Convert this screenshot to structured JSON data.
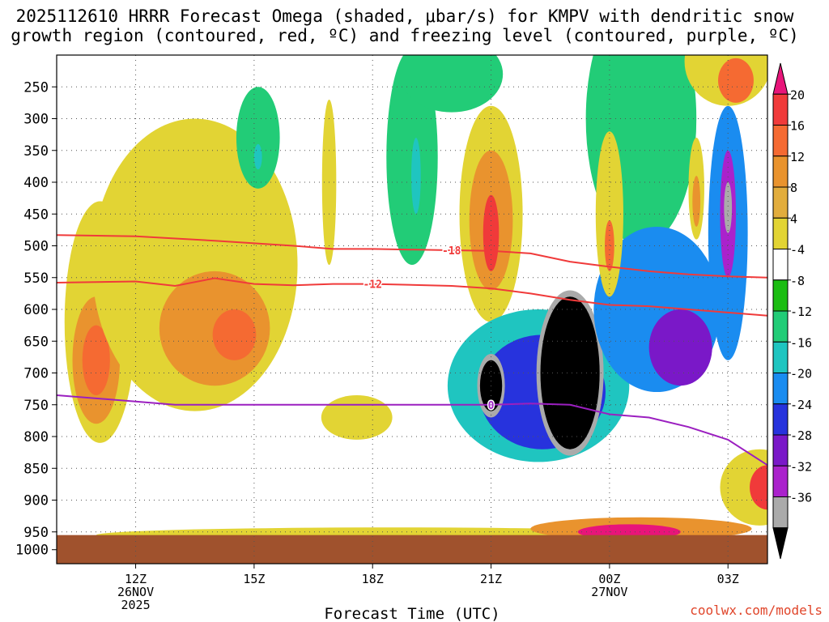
{
  "title": {
    "line1": "2025112610 HRRR Forecast Omega (shaded, μbar/s) for KMPV with dendritic snow",
    "line2": "growth region (contoured, red, ºC) and freezing level (contoured, purple, ºC)"
  },
  "credit": "coolwx.com/models",
  "chart_data": {
    "type": "heatmap",
    "title": "2025112610 HRRR Forecast Omega (shaded, μbar/s) for KMPV with dendritic snow growth region (contoured, red, ºC) and freezing level (contoured, purple, ºC)",
    "xlabel": "Forecast Time (UTC)",
    "ylabel": "",
    "x_range_hours_utc": [
      10,
      28
    ],
    "y_range_hpa": [
      200,
      1000
    ],
    "x_ticks": [
      {
        "hour": 12,
        "label": "12Z",
        "sub1": "26NOV",
        "sub2": "2025"
      },
      {
        "hour": 15,
        "label": "15Z",
        "sub1": "",
        "sub2": ""
      },
      {
        "hour": 18,
        "label": "18Z",
        "sub1": "",
        "sub2": ""
      },
      {
        "hour": 21,
        "label": "21Z",
        "sub1": "",
        "sub2": ""
      },
      {
        "hour": 24,
        "label": "00Z",
        "sub1": "27NOV",
        "sub2": ""
      },
      {
        "hour": 27,
        "label": "03Z",
        "sub1": "",
        "sub2": ""
      }
    ],
    "y_ticks": [
      250,
      300,
      350,
      400,
      450,
      500,
      550,
      600,
      650,
      700,
      750,
      800,
      850,
      900,
      950,
      1000
    ],
    "colorbar": {
      "labels": [
        "20",
        "16",
        "12",
        "8",
        "4",
        "-4",
        "-8",
        "-12",
        "-16",
        "-20",
        "-24",
        "-28",
        "-32",
        "-36"
      ],
      "colors": [
        "#e8157a",
        "#f03a3a",
        "#f56a32",
        "#e9932e",
        "#e2ad3d",
        "#e2d434",
        "#ffffff",
        "#1bbd12",
        "#22cc77",
        "#1fc5c0",
        "#1a8cf0",
        "#2733dd",
        "#7a18c8",
        "#aa22cc",
        "#aaaaaa",
        "#000000"
      ]
    },
    "ground": {
      "pressure_hpa_top": 955,
      "color": "#a0522d"
    },
    "omega_regions": [
      {
        "value": 4,
        "center": [
          11.1,
          620
        ],
        "spread": [
          0.9,
          190
        ]
      },
      {
        "value": 8,
        "center": [
          11.0,
          680
        ],
        "spread": [
          0.6,
          100
        ]
      },
      {
        "value": 12,
        "center": [
          11.0,
          680
        ],
        "spread": [
          0.35,
          55
        ]
      },
      {
        "value": 4,
        "center": [
          13.5,
          530
        ],
        "spread": [
          2.6,
          230
        ]
      },
      {
        "value": 8,
        "center": [
          14.0,
          630
        ],
        "spread": [
          1.4,
          90
        ]
      },
      {
        "value": 12,
        "center": [
          14.5,
          640
        ],
        "spread": [
          0.55,
          40
        ]
      },
      {
        "value": -8,
        "center": [
          15.1,
          330
        ],
        "spread": [
          0.55,
          80
        ]
      },
      {
        "value": -12,
        "center": [
          15.1,
          360
        ],
        "spread": [
          0.1,
          20
        ]
      },
      {
        "value": 4,
        "center": [
          16.9,
          400
        ],
        "spread": [
          0.18,
          130
        ]
      },
      {
        "value": -8,
        "center": [
          19.0,
          360
        ],
        "spread": [
          0.65,
          170
        ]
      },
      {
        "value": -12,
        "center": [
          19.1,
          390
        ],
        "spread": [
          0.12,
          60
        ]
      },
      {
        "value": 4,
        "center": [
          17.6,
          770
        ],
        "spread": [
          0.9,
          35
        ]
      },
      {
        "value": -8,
        "center": [
          20.0,
          230
        ],
        "spread": [
          1.3,
          60
        ]
      },
      {
        "value": 4,
        "center": [
          21.0,
          450
        ],
        "spread": [
          0.8,
          170
        ]
      },
      {
        "value": 8,
        "center": [
          21.0,
          460
        ],
        "spread": [
          0.55,
          110
        ]
      },
      {
        "value": 16,
        "center": [
          21.0,
          480
        ],
        "spread": [
          0.2,
          60
        ]
      },
      {
        "value": -12,
        "center": [
          22.2,
          720
        ],
        "spread": [
          2.3,
          120
        ]
      },
      {
        "value": -20,
        "center": [
          22.3,
          730
        ],
        "spread": [
          1.6,
          90
        ]
      },
      {
        "value": -32,
        "center": [
          21.0,
          720
        ],
        "spread": [
          0.35,
          50
        ]
      },
      {
        "value": -36,
        "center": [
          21.0,
          720
        ],
        "spread": [
          0.28,
          40
        ]
      },
      {
        "value": -32,
        "center": [
          23.0,
          700
        ],
        "spread": [
          0.85,
          130
        ]
      },
      {
        "value": -36,
        "center": [
          23.0,
          700
        ],
        "spread": [
          0.75,
          120
        ]
      },
      {
        "value": -8,
        "center": [
          24.8,
          300
        ],
        "spread": [
          1.4,
          200
        ]
      },
      {
        "value": -16,
        "center": [
          25.2,
          600
        ],
        "spread": [
          1.6,
          130
        ]
      },
      {
        "value": -24,
        "center": [
          25.8,
          660
        ],
        "spread": [
          0.8,
          60
        ]
      },
      {
        "value": 4,
        "center": [
          24.0,
          450
        ],
        "spread": [
          0.35,
          130
        ]
      },
      {
        "value": 12,
        "center": [
          24.0,
          500
        ],
        "spread": [
          0.12,
          40
        ]
      },
      {
        "value": 4,
        "center": [
          27.0,
          210
        ],
        "spread": [
          1.1,
          70
        ]
      },
      {
        "value": 12,
        "center": [
          27.2,
          240
        ],
        "spread": [
          0.45,
          35
        ]
      },
      {
        "value": -16,
        "center": [
          27.0,
          480
        ],
        "spread": [
          0.5,
          200
        ]
      },
      {
        "value": -28,
        "center": [
          27.0,
          450
        ],
        "spread": [
          0.2,
          100
        ]
      },
      {
        "value": -32,
        "center": [
          27.0,
          440
        ],
        "spread": [
          0.1,
          40
        ]
      },
      {
        "value": 4,
        "center": [
          26.2,
          410
        ],
        "spread": [
          0.2,
          80
        ]
      },
      {
        "value": 8,
        "center": [
          26.2,
          430
        ],
        "spread": [
          0.1,
          40
        ]
      },
      {
        "value": 4,
        "center": [
          27.8,
          880
        ],
        "spread": [
          1.0,
          60
        ]
      },
      {
        "value": 16,
        "center": [
          28.0,
          880
        ],
        "spread": [
          0.45,
          35
        ]
      },
      {
        "value": 4,
        "center": [
          18.5,
          955
        ],
        "spread": [
          7.5,
          12
        ]
      },
      {
        "value": 8,
        "center": [
          24.8,
          945
        ],
        "spread": [
          2.8,
          18
        ]
      },
      {
        "value": 20,
        "center": [
          24.5,
          950
        ],
        "spread": [
          1.3,
          12
        ]
      }
    ],
    "contours": [
      {
        "name": "dendritic-top",
        "label": "-18",
        "color": "#f03a3a",
        "points": [
          [
            10.0,
            483
          ],
          [
            12.0,
            485
          ],
          [
            14.0,
            492
          ],
          [
            16.0,
            500
          ],
          [
            17.0,
            505
          ],
          [
            18.0,
            505
          ],
          [
            20.0,
            507
          ],
          [
            21.0,
            508
          ],
          [
            22.0,
            512
          ],
          [
            23.0,
            525
          ],
          [
            24.0,
            533
          ],
          [
            25.0,
            540
          ],
          [
            26.0,
            545
          ],
          [
            27.0,
            548
          ],
          [
            28.0,
            550
          ]
        ]
      },
      {
        "name": "dendritic-bottom",
        "label": "-12",
        "color": "#f03a3a",
        "points": [
          [
            10.0,
            558
          ],
          [
            12.0,
            556
          ],
          [
            13.0,
            563
          ],
          [
            14.0,
            551
          ],
          [
            15.0,
            560
          ],
          [
            16.0,
            562
          ],
          [
            17.0,
            560
          ],
          [
            18.0,
            560
          ],
          [
            20.0,
            563
          ],
          [
            21.0,
            567
          ],
          [
            22.0,
            575
          ],
          [
            23.0,
            585
          ],
          [
            24.0,
            593
          ],
          [
            25.0,
            595
          ],
          [
            26.0,
            600
          ],
          [
            27.0,
            605
          ],
          [
            28.0,
            610
          ]
        ]
      },
      {
        "name": "freezing-level",
        "label": "0",
        "color": "#9b1fc0",
        "points": [
          [
            10.0,
            735
          ],
          [
            12.0,
            745
          ],
          [
            13.0,
            750
          ],
          [
            15.0,
            750
          ],
          [
            17.0,
            750
          ],
          [
            19.0,
            750
          ],
          [
            21.0,
            750
          ],
          [
            22.0,
            748
          ],
          [
            23.0,
            750
          ],
          [
            24.0,
            765
          ],
          [
            25.0,
            770
          ],
          [
            26.0,
            785
          ],
          [
            27.0,
            805
          ],
          [
            28.0,
            845
          ]
        ]
      }
    ]
  }
}
